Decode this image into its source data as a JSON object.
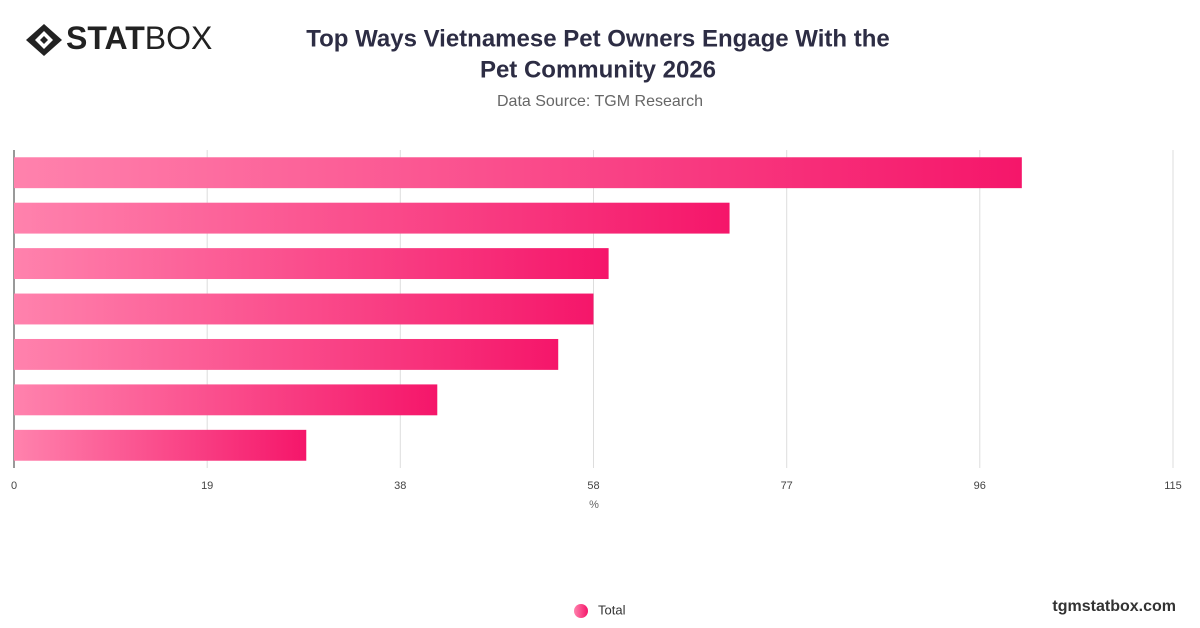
{
  "brand": {
    "bold": "STAT",
    "light": "BOX"
  },
  "footer": "tgmstatbox.com",
  "chart_data": {
    "type": "bar",
    "orientation": "horizontal",
    "title": [
      "Top Ways Vietnamese Pet Owners Engage With the",
      "Pet Community 2026"
    ],
    "subtitle": "Data Source: TGM Research",
    "x_label": "%",
    "categories": [
      null,
      null,
      null,
      null,
      null,
      null,
      null
    ],
    "series": [
      {
        "name": "Total",
        "color": "#f5166a",
        "values": [
          100,
          71,
          59,
          57.5,
          54,
          42,
          29
        ]
      }
    ],
    "xlim": [
      0,
      115
    ],
    "xticks": [
      0,
      {
        "value": 19.17,
        "label": "19"
      },
      {
        "value": 38.33,
        "label": "38"
      },
      {
        "value": 57.5,
        "label": "58"
      },
      {
        "value": 76.67,
        "label": "77"
      },
      {
        "value": 95.83,
        "label": "96"
      },
      115
    ],
    "grid": true,
    "legend": "bottom"
  }
}
